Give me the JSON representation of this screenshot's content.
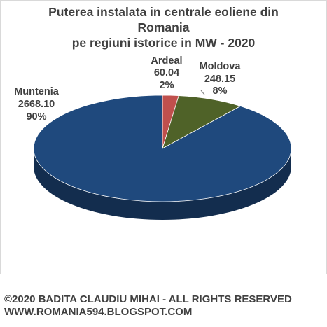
{
  "chart_data": {
    "type": "pie",
    "title_lines": [
      "Puterea instalata in centrale eoliene din",
      "Romania",
      "pe regiuni istorice in MW - 2020"
    ],
    "slices": [
      {
        "name": "Ardeal",
        "value_label": "60.04",
        "value": 60.04,
        "percent_label": "2%",
        "color": "#c0504d"
      },
      {
        "name": "Moldova",
        "value_label": "248.15",
        "value": 248.15,
        "percent_label": "8%",
        "color": "#4f6228"
      },
      {
        "name": "Muntenia",
        "value_label": "2668.10",
        "value": 2668.1,
        "percent_label": "90%",
        "color": "#1f497d"
      }
    ],
    "style": "3d"
  },
  "footer": {
    "line1": "©2020 BADITA CLAUDIU MIHAI - ALL RIGHTS RESERVED",
    "line2": "WWW.ROMANIA594.BLOGSPOT.COM"
  }
}
